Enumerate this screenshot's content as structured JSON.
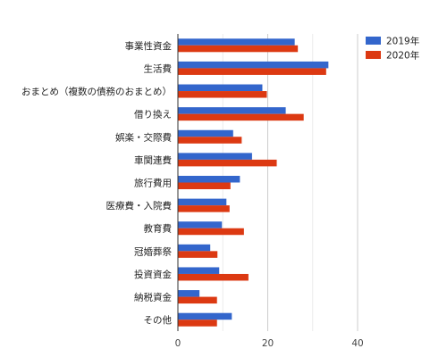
{
  "chart_data": {
    "type": "bar",
    "orientation": "horizontal",
    "categories": [
      "事業性資金",
      "生活費",
      "おまとめ（複数の債務のおまとめ）",
      "借り換え",
      "娯楽・交際費",
      "車関連費",
      "旅行費用",
      "医療費・入院費",
      "教育費",
      "冠婚葬祭",
      "投資資金",
      "納税資金",
      "その他"
    ],
    "series": [
      {
        "name": "2019年",
        "color": "#3366cc",
        "values": [
          26,
          33.5,
          18.8,
          24,
          12.3,
          16.5,
          13.8,
          10.8,
          9.8,
          7.2,
          9.2,
          4.8,
          12
        ]
      },
      {
        "name": "2020年",
        "color": "#dc3912",
        "values": [
          26.7,
          33,
          19.8,
          28,
          14.2,
          22,
          11.7,
          11.5,
          14.7,
          8.8,
          15.7,
          8.7,
          8.7
        ]
      }
    ],
    "xlim": [
      0,
      40
    ],
    "x_ticks": [
      "0",
      "20",
      "40"
    ],
    "grid": true,
    "legend_position": "top-right",
    "title": "",
    "xlabel": "",
    "ylabel": ""
  }
}
